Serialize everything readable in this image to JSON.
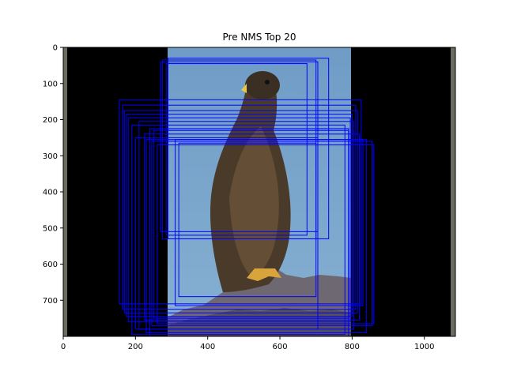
{
  "chart_data": {
    "type": "image-with-boxes",
    "title": "Pre NMS Top 20",
    "xlim": [
      0,
      1086
    ],
    "ylim": [
      800,
      0
    ],
    "x_ticks": [
      0,
      200,
      400,
      600,
      800,
      1000
    ],
    "y_ticks": [
      0,
      100,
      200,
      300,
      400,
      500,
      600,
      700
    ],
    "box_color": "#0000ff",
    "image_regions": [
      {
        "name": "left-black-padding",
        "x0": 0,
        "x1": 290,
        "color": "#000000"
      },
      {
        "name": "photo",
        "x0": 290,
        "x1": 800,
        "color": "#7aa6cc"
      },
      {
        "name": "right-black-padding",
        "x0": 800,
        "x1": 1086,
        "color": "#000000"
      }
    ],
    "boxes": [
      {
        "x1": 275,
        "y1": 35,
        "x2": 700,
        "y2": 530
      },
      {
        "x1": 290,
        "y1": 30,
        "x2": 735,
        "y2": 530
      },
      {
        "x1": 285,
        "y1": 45,
        "x2": 675,
        "y2": 520
      },
      {
        "x1": 270,
        "y1": 40,
        "x2": 705,
        "y2": 510
      },
      {
        "x1": 155,
        "y1": 145,
        "x2": 825,
        "y2": 710
      },
      {
        "x1": 165,
        "y1": 160,
        "x2": 810,
        "y2": 725
      },
      {
        "x1": 175,
        "y1": 185,
        "x2": 800,
        "y2": 745
      },
      {
        "x1": 180,
        "y1": 195,
        "x2": 795,
        "y2": 760
      },
      {
        "x1": 170,
        "y1": 175,
        "x2": 815,
        "y2": 735
      },
      {
        "x1": 200,
        "y1": 250,
        "x2": 705,
        "y2": 780
      },
      {
        "x1": 230,
        "y1": 255,
        "x2": 840,
        "y2": 790
      },
      {
        "x1": 245,
        "y1": 260,
        "x2": 855,
        "y2": 770
      },
      {
        "x1": 320,
        "y1": 265,
        "x2": 700,
        "y2": 690
      },
      {
        "x1": 310,
        "y1": 255,
        "x2": 830,
        "y2": 715
      },
      {
        "x1": 240,
        "y1": 225,
        "x2": 790,
        "y2": 800
      },
      {
        "x1": 190,
        "y1": 215,
        "x2": 780,
        "y2": 795
      },
      {
        "x1": 210,
        "y1": 205,
        "x2": 805,
        "y2": 780
      },
      {
        "x1": 260,
        "y1": 270,
        "x2": 860,
        "y2": 765
      },
      {
        "x1": 225,
        "y1": 240,
        "x2": 820,
        "y2": 755
      },
      {
        "x1": 250,
        "y1": 230,
        "x2": 790,
        "y2": 750
      }
    ]
  }
}
